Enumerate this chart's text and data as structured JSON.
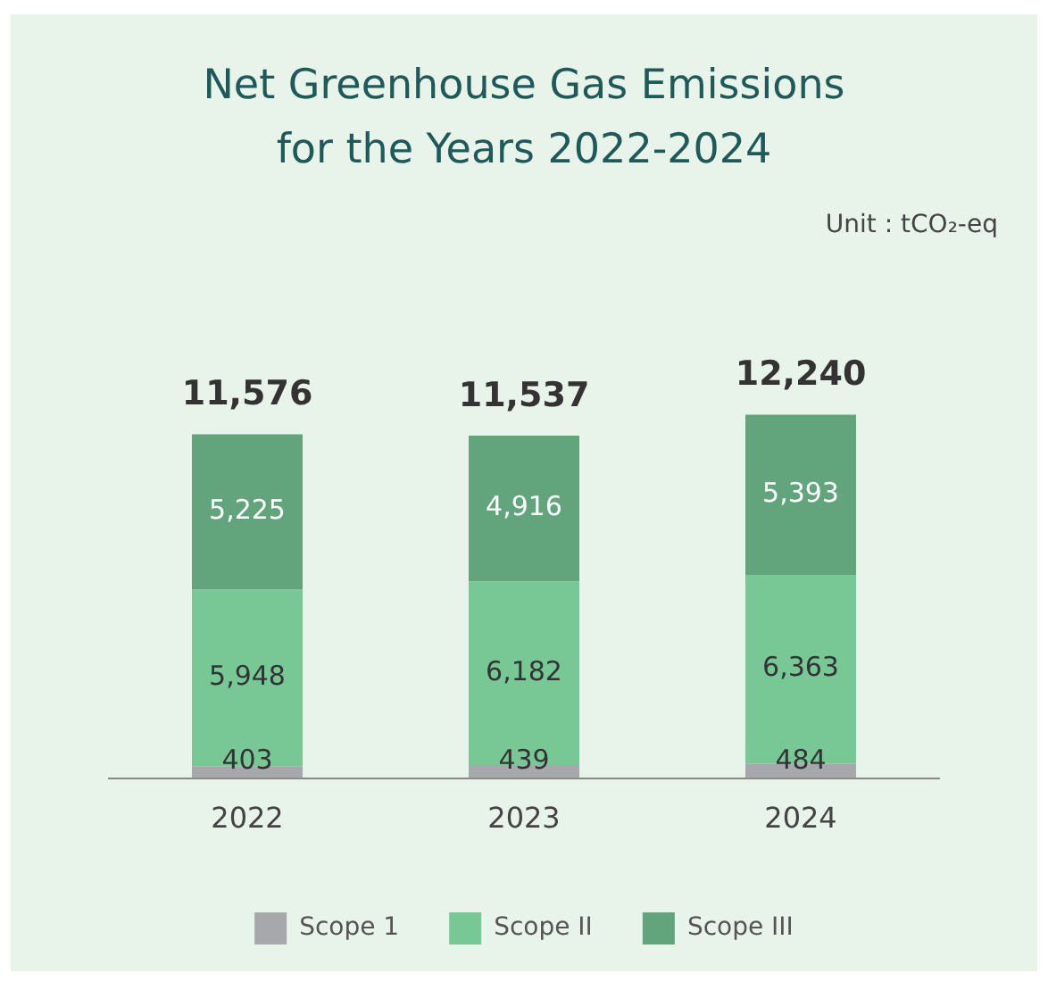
{
  "chart_data": {
    "type": "bar",
    "title": "Net Greenhouse Gas Emissions for the Years 2022-2024",
    "annotations": [
      "Unit : tCO₂-eq"
    ],
    "categories": [
      "2022",
      "2023",
      "2024"
    ],
    "series": [
      {
        "name": "Scope 1",
        "color": "#a7a8ab",
        "values": [
          403,
          439,
          484
        ],
        "value_labels": [
          "403",
          "439",
          "484"
        ]
      },
      {
        "name": "Scope II",
        "color": "#78c896",
        "values": [
          5948,
          6182,
          6363
        ],
        "value_labels": [
          "5,948",
          "6,182",
          "6,363"
        ]
      },
      {
        "name": "Scope III",
        "color": "#62a57c",
        "values": [
          5225,
          4916,
          5393
        ],
        "value_labels": [
          "5,225",
          "4,916",
          "5,393"
        ]
      }
    ],
    "stacked": true,
    "totals": [
      "11,576",
      "11,537",
      "12,240"
    ],
    "legend": "bottom",
    "grid": false,
    "tick_labels": "x"
  }
}
